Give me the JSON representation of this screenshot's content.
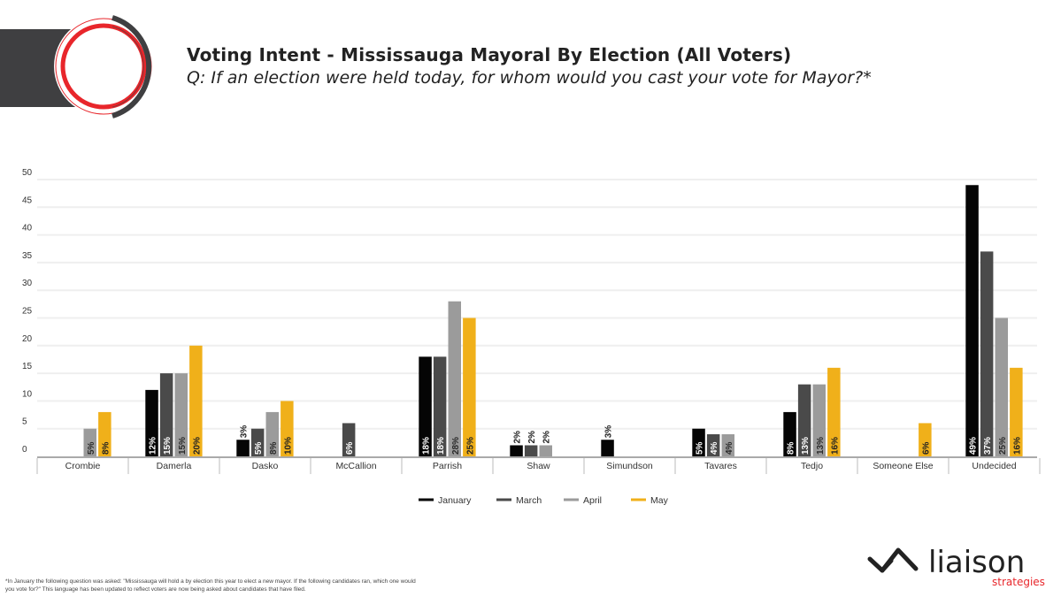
{
  "header": {
    "title": "Voting Intent - Mississauga Mayoral By Election (All Voters)",
    "subtitle": "Q: If an election were held today, for whom would you cast your vote for Mayor?*"
  },
  "footnote": "*In January the following question was asked: \"Mississauga will hold a by election this year to elect a new mayor. If the following candidates ran, which one would you vote for?\" This language has been updated to reflect voters are now being asked about candidates that have filed.",
  "brand": {
    "name": "liaison",
    "tagline": "strategies",
    "accent": "#e8262b",
    "dark": "#222222"
  },
  "chart_data": {
    "type": "bar",
    "title": "",
    "xlabel": "",
    "ylabel": "",
    "ylim": [
      0,
      50
    ],
    "yticks": [
      0,
      5,
      10,
      15,
      20,
      25,
      30,
      35,
      40,
      45,
      50
    ],
    "grid": true,
    "legend_position": "bottom",
    "categories": [
      "Crombie",
      "Damerla",
      "Dasko",
      "McCallion",
      "Parrish",
      "Shaw",
      "Simundson",
      "Tavares",
      "Tedjo",
      "Someone Else",
      "Undecided"
    ],
    "series": [
      {
        "name": "January",
        "color": "#050505",
        "label_color": "#ffffff",
        "values": [
          null,
          12,
          3,
          null,
          18,
          2,
          3,
          5,
          8,
          null,
          49
        ]
      },
      {
        "name": "March",
        "color": "#4a4a4a",
        "label_color": "#ffffff",
        "values": [
          null,
          15,
          5,
          6,
          18,
          2,
          null,
          4,
          13,
          null,
          37
        ]
      },
      {
        "name": "April",
        "color": "#9b9b9b",
        "label_color": "#2a2a2a",
        "values": [
          5,
          15,
          8,
          null,
          28,
          2,
          null,
          4,
          13,
          null,
          25
        ]
      },
      {
        "name": "May",
        "color": "#f0b01a",
        "label_color": "#222222",
        "values": [
          8,
          20,
          10,
          null,
          25,
          null,
          null,
          null,
          16,
          6,
          16
        ]
      }
    ]
  }
}
